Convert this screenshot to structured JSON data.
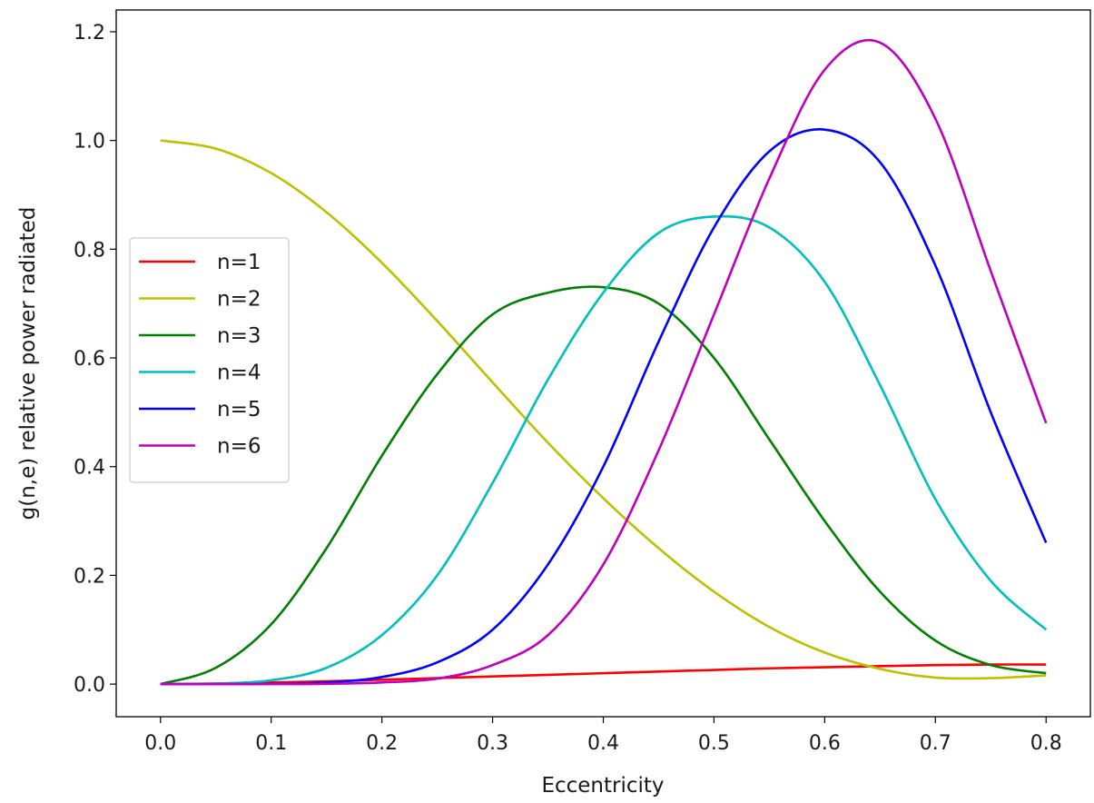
{
  "chart_data": {
    "type": "line",
    "title": "",
    "xlabel": "Eccentricity",
    "ylabel": "g(n,e)  relative power radiated",
    "xlim": [
      -0.04,
      0.84
    ],
    "ylim": [
      -0.06,
      1.24
    ],
    "xticks": [
      0.0,
      0.1,
      0.2,
      0.3,
      0.4,
      0.5,
      0.6,
      0.7,
      0.8
    ],
    "xtick_labels": [
      "0.0",
      "0.1",
      "0.2",
      "0.3",
      "0.4",
      "0.5",
      "0.6",
      "0.7",
      "0.8"
    ],
    "yticks": [
      0.0,
      0.2,
      0.4,
      0.6,
      0.8,
      1.0,
      1.2
    ],
    "ytick_labels": [
      "0.0",
      "0.2",
      "0.4",
      "0.6",
      "0.8",
      "1.0",
      "1.2"
    ],
    "grid": false,
    "legend_position": "center-left",
    "x": [
      0.0,
      0.05,
      0.1,
      0.15,
      0.2,
      0.25,
      0.3,
      0.35,
      0.4,
      0.45,
      0.5,
      0.55,
      0.6,
      0.65,
      0.7,
      0.75,
      0.8
    ],
    "series": [
      {
        "name": "n=1",
        "color": "#ff0000",
        "values": [
          0.0,
          0.001,
          0.003,
          0.005,
          0.008,
          0.011,
          0.014,
          0.017,
          0.02,
          0.023,
          0.026,
          0.029,
          0.031,
          0.033,
          0.035,
          0.036,
          0.036
        ]
      },
      {
        "name": "n=2",
        "color": "#bfbf00",
        "values": [
          1.0,
          0.985,
          0.94,
          0.868,
          0.775,
          0.668,
          0.555,
          0.444,
          0.342,
          0.25,
          0.17,
          0.105,
          0.058,
          0.028,
          0.012,
          0.011,
          0.016
        ]
      },
      {
        "name": "n=3",
        "color": "#008000",
        "values": [
          0.0,
          0.03,
          0.11,
          0.25,
          0.42,
          0.57,
          0.68,
          0.72,
          0.73,
          0.7,
          0.6,
          0.45,
          0.3,
          0.17,
          0.08,
          0.035,
          0.02
        ]
      },
      {
        "name": "n=4",
        "color": "#00bfbf",
        "values": [
          0.0,
          0.001,
          0.007,
          0.03,
          0.09,
          0.2,
          0.37,
          0.56,
          0.72,
          0.83,
          0.86,
          0.84,
          0.74,
          0.55,
          0.34,
          0.19,
          0.1
        ]
      },
      {
        "name": "n=5",
        "color": "#0000ff",
        "values": [
          0.0,
          0.0,
          0.0005,
          0.003,
          0.013,
          0.04,
          0.1,
          0.22,
          0.4,
          0.63,
          0.84,
          0.98,
          1.02,
          0.96,
          0.77,
          0.5,
          0.26
        ]
      },
      {
        "name": "n=6",
        "color": "#bf00bf",
        "values": [
          0.0,
          0.0,
          0.0,
          0.0005,
          0.003,
          0.01,
          0.035,
          0.09,
          0.22,
          0.43,
          0.68,
          0.93,
          1.13,
          1.18,
          1.04,
          0.76,
          0.48
        ]
      }
    ]
  }
}
